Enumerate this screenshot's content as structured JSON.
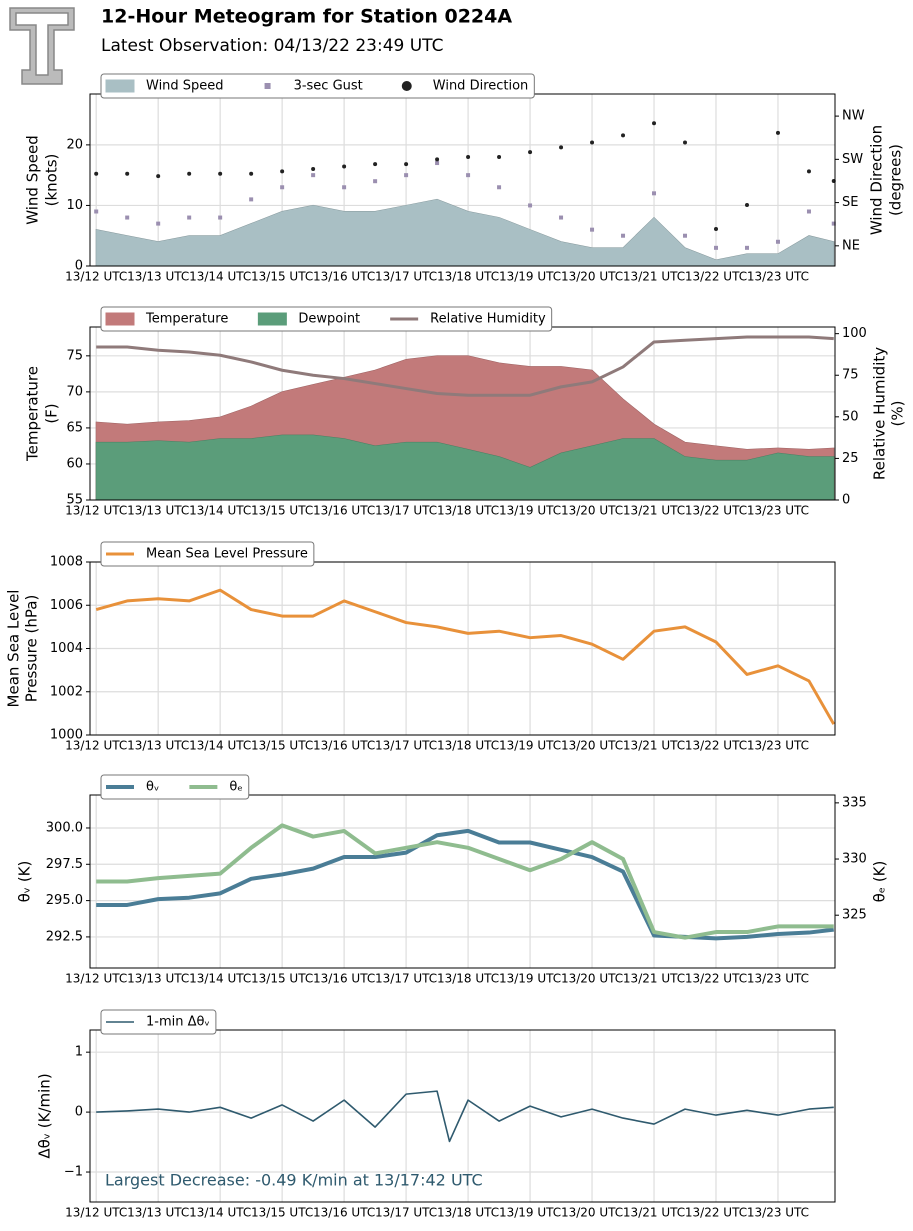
{
  "header": {
    "title": "12-Hour Meteogram for Station 0224A",
    "subtitle": "Latest Observation: 04/13/22 23:49 UTC"
  },
  "chart_data": [
    {
      "type": "wind",
      "ylabel": [
        "Wind Speed",
        "(knots)"
      ],
      "y2label": [
        "Wind Direction",
        "(degrees)"
      ],
      "x": [
        12,
        12.5,
        13,
        13.5,
        14,
        14.5,
        15,
        15.5,
        16,
        16.5,
        17,
        17.5,
        18,
        18.5,
        19,
        19.5,
        20,
        20.5,
        21,
        21.5,
        22,
        22.5,
        23,
        23.5,
        23.9
      ],
      "xlim": [
        11.9,
        23.92
      ],
      "xticks": [
        {
          "value": 12,
          "label": "13/12 UTC"
        },
        {
          "value": 13,
          "label": "13/13 UTC"
        },
        {
          "value": 14,
          "label": "13/14 UTC"
        },
        {
          "value": 15,
          "label": "13/15 UTC"
        },
        {
          "value": 16,
          "label": "13/16 UTC"
        },
        {
          "value": 17,
          "label": "13/17 UTC"
        },
        {
          "value": 18,
          "label": "13/18 UTC"
        },
        {
          "value": 19,
          "label": "13/19 UTC"
        },
        {
          "value": 20,
          "label": "13/20 UTC"
        },
        {
          "value": 21,
          "label": "13/21 UTC"
        },
        {
          "value": 22,
          "label": "13/22 UTC"
        },
        {
          "value": 23,
          "label": "13/23 UTC"
        }
      ],
      "ylim": [
        0,
        28.4
      ],
      "yticks": [
        0,
        10,
        20
      ],
      "y2lim": [
        3,
        361
      ],
      "y2ticks": [
        {
          "value": 45,
          "label": "NE"
        },
        {
          "value": 135,
          "label": "SE"
        },
        {
          "value": 225,
          "label": "SW"
        },
        {
          "value": 315,
          "label": "NW"
        }
      ],
      "grid": true,
      "series": [
        {
          "name": "Wind Speed",
          "kind": "area",
          "color": "#a9bfc4",
          "values": [
            6,
            5,
            4,
            5,
            5,
            7,
            9,
            10,
            9,
            9,
            10,
            11,
            9,
            8,
            6,
            4,
            3,
            3,
            8,
            3,
            1,
            2,
            2,
            5,
            4
          ]
        },
        {
          "name": "3-sec Gust",
          "kind": "points",
          "color": "#9b8fb0",
          "values": [
            9,
            8,
            7,
            8,
            8,
            11,
            13,
            15,
            13,
            14,
            15,
            17,
            15,
            13,
            10,
            8,
            6,
            5,
            12,
            5,
            3,
            3,
            4,
            9,
            7
          ]
        },
        {
          "name": "Wind Direction",
          "kind": "points",
          "axis": "y2",
          "color": "#222222",
          "values": [
            195,
            195,
            190,
            195,
            195,
            195,
            200,
            205,
            210,
            215,
            215,
            225,
            230,
            230,
            240,
            250,
            260,
            275,
            300,
            260,
            80,
            130,
            280,
            200,
            180
          ]
        }
      ]
    },
    {
      "type": "thermo",
      "ylabel": [
        "Temperature",
        "(F)"
      ],
      "y2label": [
        "Relative Humidity",
        "(%)"
      ],
      "x": [
        12,
        12.5,
        13,
        13.5,
        14,
        14.5,
        15,
        15.5,
        16,
        16.5,
        17,
        17.5,
        18,
        18.5,
        19,
        19.5,
        20,
        20.5,
        21,
        21.5,
        22,
        22.5,
        23,
        23.5,
        23.9
      ],
      "xlim": [
        11.9,
        23.92
      ],
      "xticks": [
        {
          "value": 12,
          "label": "13/12 UTC"
        },
        {
          "value": 13,
          "label": "13/13 UTC"
        },
        {
          "value": 14,
          "label": "13/14 UTC"
        },
        {
          "value": 15,
          "label": "13/15 UTC"
        },
        {
          "value": 16,
          "label": "13/16 UTC"
        },
        {
          "value": 17,
          "label": "13/17 UTC"
        },
        {
          "value": 18,
          "label": "13/18 UTC"
        },
        {
          "value": 19,
          "label": "13/19 UTC"
        },
        {
          "value": 20,
          "label": "13/20 UTC"
        },
        {
          "value": 21,
          "label": "13/21 UTC"
        },
        {
          "value": 22,
          "label": "13/22 UTC"
        },
        {
          "value": 23,
          "label": "13/23 UTC"
        }
      ],
      "ylim": [
        55,
        79
      ],
      "yticks": [
        55,
        60,
        65,
        70,
        75
      ],
      "y2lim": [
        0,
        104
      ],
      "y2ticks": [
        0,
        25,
        50,
        75,
        100
      ],
      "grid": true,
      "series": [
        {
          "name": "Temperature",
          "kind": "area",
          "color": "#c27a7a",
          "values": [
            65.8,
            65.5,
            65.8,
            66,
            66.5,
            68,
            70,
            71,
            72,
            73,
            74.5,
            75,
            75,
            74,
            73.5,
            73.5,
            73,
            69,
            65.5,
            63,
            62.5,
            62,
            62.2,
            62,
            62.2
          ]
        },
        {
          "name": "Dewpoint",
          "kind": "area",
          "color": "#5b9d7a",
          "values": [
            63,
            63,
            63.2,
            63,
            63.5,
            63.5,
            64,
            64,
            63.5,
            62.5,
            63,
            63,
            62,
            61,
            59.5,
            61.5,
            62.5,
            63.5,
            63.5,
            61,
            60.5,
            60.5,
            61.5,
            61,
            61
          ]
        },
        {
          "name": "Relative Humidity",
          "kind": "line",
          "axis": "y2",
          "color": "#8f7a7a",
          "values": [
            92,
            92,
            90,
            89,
            87,
            83,
            78,
            75,
            73,
            70,
            67,
            64,
            63,
            63,
            63,
            68,
            71,
            80,
            95,
            96,
            97,
            98,
            98,
            98,
            97
          ]
        }
      ]
    },
    {
      "type": "pressure",
      "ylabel": [
        "Mean Sea Level",
        "Pressure (hPa)"
      ],
      "x": [
        12,
        12.5,
        13,
        13.5,
        14,
        14.5,
        15,
        15.5,
        16,
        16.5,
        17,
        17.5,
        18,
        18.5,
        19,
        19.5,
        20,
        20.5,
        21,
        21.5,
        22,
        22.5,
        23,
        23.5,
        23.9
      ],
      "xlim": [
        11.9,
        23.92
      ],
      "xticks": [
        {
          "value": 12,
          "label": "13/12 UTC"
        },
        {
          "value": 13,
          "label": "13/13 UTC"
        },
        {
          "value": 14,
          "label": "13/14 UTC"
        },
        {
          "value": 15,
          "label": "13/15 UTC"
        },
        {
          "value": 16,
          "label": "13/16 UTC"
        },
        {
          "value": 17,
          "label": "13/17 UTC"
        },
        {
          "value": 18,
          "label": "13/18 UTC"
        },
        {
          "value": 19,
          "label": "13/19 UTC"
        },
        {
          "value": 20,
          "label": "13/20 UTC"
        },
        {
          "value": 21,
          "label": "13/21 UTC"
        },
        {
          "value": 22,
          "label": "13/22 UTC"
        },
        {
          "value": 23,
          "label": "13/23 UTC"
        }
      ],
      "ylim": [
        1000,
        1008
      ],
      "yticks": [
        1000,
        1002,
        1004,
        1006,
        1008
      ],
      "grid": true,
      "series": [
        {
          "name": "Mean Sea Level Pressure",
          "kind": "line",
          "color": "#e8913a",
          "values": [
            1005.8,
            1006.2,
            1006.3,
            1006.2,
            1006.7,
            1005.8,
            1005.5,
            1005.5,
            1006.2,
            1005.7,
            1005.2,
            1005,
            1004.7,
            1004.8,
            1004.5,
            1004.6,
            1004.2,
            1003.5,
            1004.8,
            1005,
            1004.3,
            1002.8,
            1003.2,
            1002.5,
            1000.5
          ]
        }
      ]
    },
    {
      "type": "theta",
      "ylabel": [
        "θᵥ (K)"
      ],
      "y2label": [
        "θₑ (K)"
      ],
      "x": [
        12,
        12.5,
        13,
        13.5,
        14,
        14.5,
        15,
        15.5,
        16,
        16.5,
        17,
        17.5,
        18,
        18.5,
        19,
        19.5,
        20,
        20.5,
        21,
        21.5,
        22,
        22.5,
        23,
        23.5,
        23.9
      ],
      "xlim": [
        11.9,
        23.92
      ],
      "xticks": [
        {
          "value": 12,
          "label": "13/12 UTC"
        },
        {
          "value": 13,
          "label": "13/13 UTC"
        },
        {
          "value": 14,
          "label": "13/14 UTC"
        },
        {
          "value": 15,
          "label": "13/15 UTC"
        },
        {
          "value": 16,
          "label": "13/16 UTC"
        },
        {
          "value": 17,
          "label": "13/17 UTC"
        },
        {
          "value": 18,
          "label": "13/18 UTC"
        },
        {
          "value": 19,
          "label": "13/19 UTC"
        },
        {
          "value": 20,
          "label": "13/20 UTC"
        },
        {
          "value": 21,
          "label": "13/21 UTC"
        },
        {
          "value": 22,
          "label": "13/22 UTC"
        },
        {
          "value": 23,
          "label": "13/23 UTC"
        }
      ],
      "ylim": [
        290.36,
        302.27
      ],
      "yticks": [
        292.5,
        {
          "value": 295,
          "label": "295.0"
        },
        297.5,
        {
          "value": 300,
          "label": "300.0"
        }
      ],
      "y2lim": [
        320.3,
        335.7
      ],
      "y2ticks": [
        325,
        330,
        335
      ],
      "grid": true,
      "series": [
        {
          "name": "θᵥ",
          "kind": "line",
          "color": "#4a7d96",
          "values": [
            294.7,
            294.7,
            295.1,
            295.2,
            295.5,
            296.5,
            296.8,
            297.2,
            298,
            298,
            298.3,
            299.5,
            299.8,
            299,
            299,
            298.5,
            298,
            297,
            292.6,
            292.5,
            292.4,
            292.5,
            292.7,
            292.8,
            293
          ]
        },
        {
          "name": "θₑ",
          "kind": "line",
          "axis": "y2",
          "color": "#8fbc8f",
          "values": [
            328,
            328,
            328.3,
            328.5,
            328.7,
            331,
            333,
            332,
            332.5,
            330.5,
            331,
            331.5,
            331,
            330,
            329,
            330,
            331.5,
            330,
            323.5,
            323,
            323.5,
            323.5,
            324,
            324,
            324
          ]
        }
      ]
    },
    {
      "type": "delta",
      "ylabel": [
        "Δθᵥ (K/min)"
      ],
      "annotation": "Largest Decrease: -0.49 K/min at 13/17:42 UTC",
      "x": [
        12,
        12.5,
        13,
        13.5,
        14,
        14.5,
        15,
        15.5,
        16,
        16.5,
        17,
        17.5,
        17.7,
        18,
        18.5,
        19,
        19.5,
        20,
        20.5,
        21,
        21.5,
        22,
        22.5,
        23,
        23.5,
        23.9
      ],
      "xlim": [
        11.9,
        23.92
      ],
      "xticks": [
        {
          "value": 12,
          "label": "13/12 UTC"
        },
        {
          "value": 13,
          "label": "13/13 UTC"
        },
        {
          "value": 14,
          "label": "13/14 UTC"
        },
        {
          "value": 15,
          "label": "13/15 UTC"
        },
        {
          "value": 16,
          "label": "13/16 UTC"
        },
        {
          "value": 17,
          "label": "13/17 UTC"
        },
        {
          "value": 18,
          "label": "13/18 UTC"
        },
        {
          "value": 19,
          "label": "13/19 UTC"
        },
        {
          "value": 20,
          "label": "13/20 UTC"
        },
        {
          "value": 21,
          "label": "13/21 UTC"
        },
        {
          "value": 22,
          "label": "13/22 UTC"
        },
        {
          "value": 23,
          "label": "13/23 UTC"
        }
      ],
      "ylim": [
        -1.5,
        1.37
      ],
      "yticks": [
        {
          "value": -1,
          "label": "−1"
        },
        0,
        1
      ],
      "grid": true,
      "series": [
        {
          "name": "1-min Δθᵥ",
          "kind": "line",
          "color": "#2f5a6e",
          "values": [
            0,
            0.02,
            0.05,
            0,
            0.08,
            -0.1,
            0.12,
            -0.15,
            0.2,
            -0.25,
            0.3,
            0.35,
            -0.49,
            0.2,
            -0.15,
            0.1,
            -0.08,
            0.05,
            -0.1,
            -0.2,
            0.05,
            -0.05,
            0.03,
            -0.05,
            0.05,
            0.08
          ]
        }
      ]
    }
  ]
}
